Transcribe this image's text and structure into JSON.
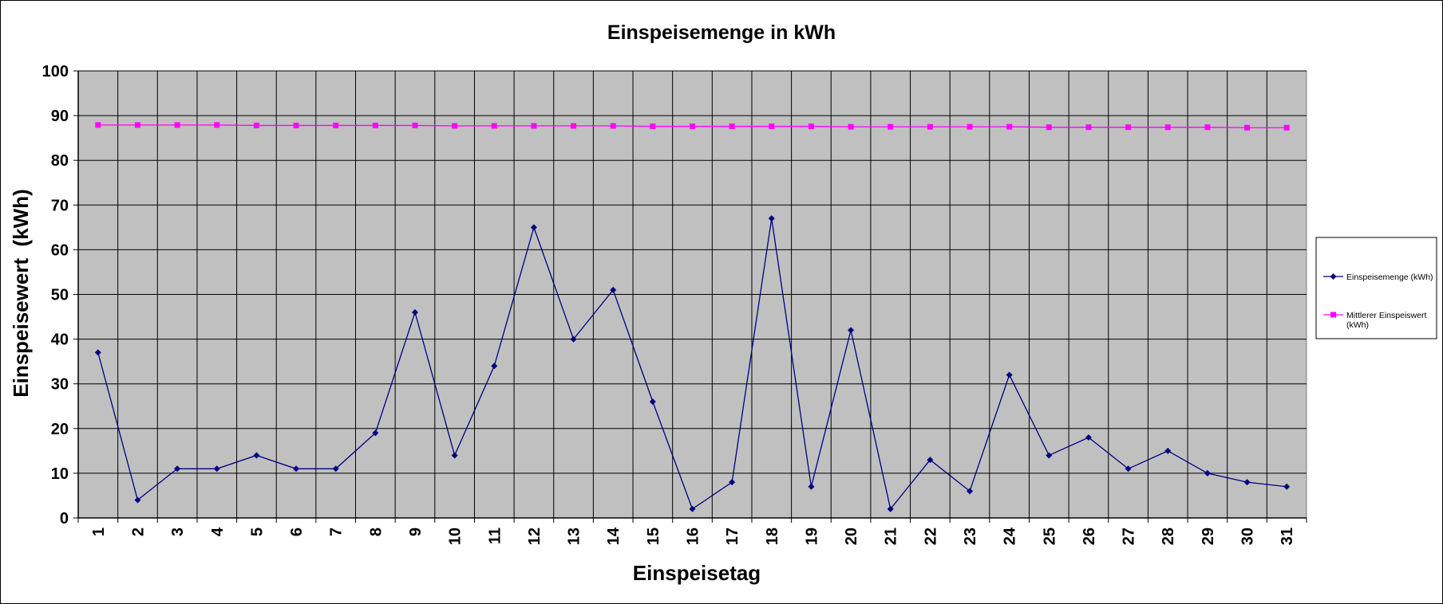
{
  "chart_data": {
    "type": "line",
    "title": "Einspeisemenge in kWh",
    "xlabel": "Einspeisetag",
    "ylabel": "Einspeisewert  (kWh)",
    "categories": [
      "1",
      "2",
      "3",
      "4",
      "5",
      "6",
      "7",
      "8",
      "9",
      "10",
      "11",
      "12",
      "13",
      "14",
      "15",
      "16",
      "17",
      "18",
      "19",
      "20",
      "21",
      "22",
      "23",
      "24",
      "25",
      "26",
      "27",
      "28",
      "29",
      "30",
      "31"
    ],
    "yticks": [
      "0",
      "10",
      "20",
      "30",
      "40",
      "50",
      "60",
      "70",
      "80",
      "90",
      "100"
    ],
    "ylim": [
      0,
      100
    ],
    "grid": true,
    "legend_position": "right",
    "plot_background": "#c0c0c0",
    "series": [
      {
        "name": "Einspeisemenge (kWh)",
        "legend_label_lines": [
          "Einspeisemenge (kWh)"
        ],
        "color": "#000080",
        "marker": "diamond",
        "values": [
          37,
          4,
          11,
          11,
          14,
          11,
          11,
          19,
          46,
          14,
          34,
          65,
          40,
          51,
          26,
          2,
          8,
          67,
          7,
          42,
          2,
          13,
          6,
          32,
          14,
          18,
          11,
          15,
          10,
          8,
          7
        ]
      },
      {
        "name": "Mittlerer Einspeiswert (kWh)",
        "legend_label_lines": [
          "Mittlerer Einspeiswert",
          "(kWh)"
        ],
        "color": "#ff00ff",
        "marker": "square",
        "values": [
          87.9,
          87.9,
          87.9,
          87.9,
          87.8,
          87.8,
          87.8,
          87.8,
          87.8,
          87.7,
          87.7,
          87.7,
          87.7,
          87.7,
          87.6,
          87.6,
          87.6,
          87.6,
          87.6,
          87.5,
          87.5,
          87.5,
          87.5,
          87.5,
          87.4,
          87.4,
          87.4,
          87.4,
          87.4,
          87.3,
          87.3
        ]
      }
    ]
  }
}
